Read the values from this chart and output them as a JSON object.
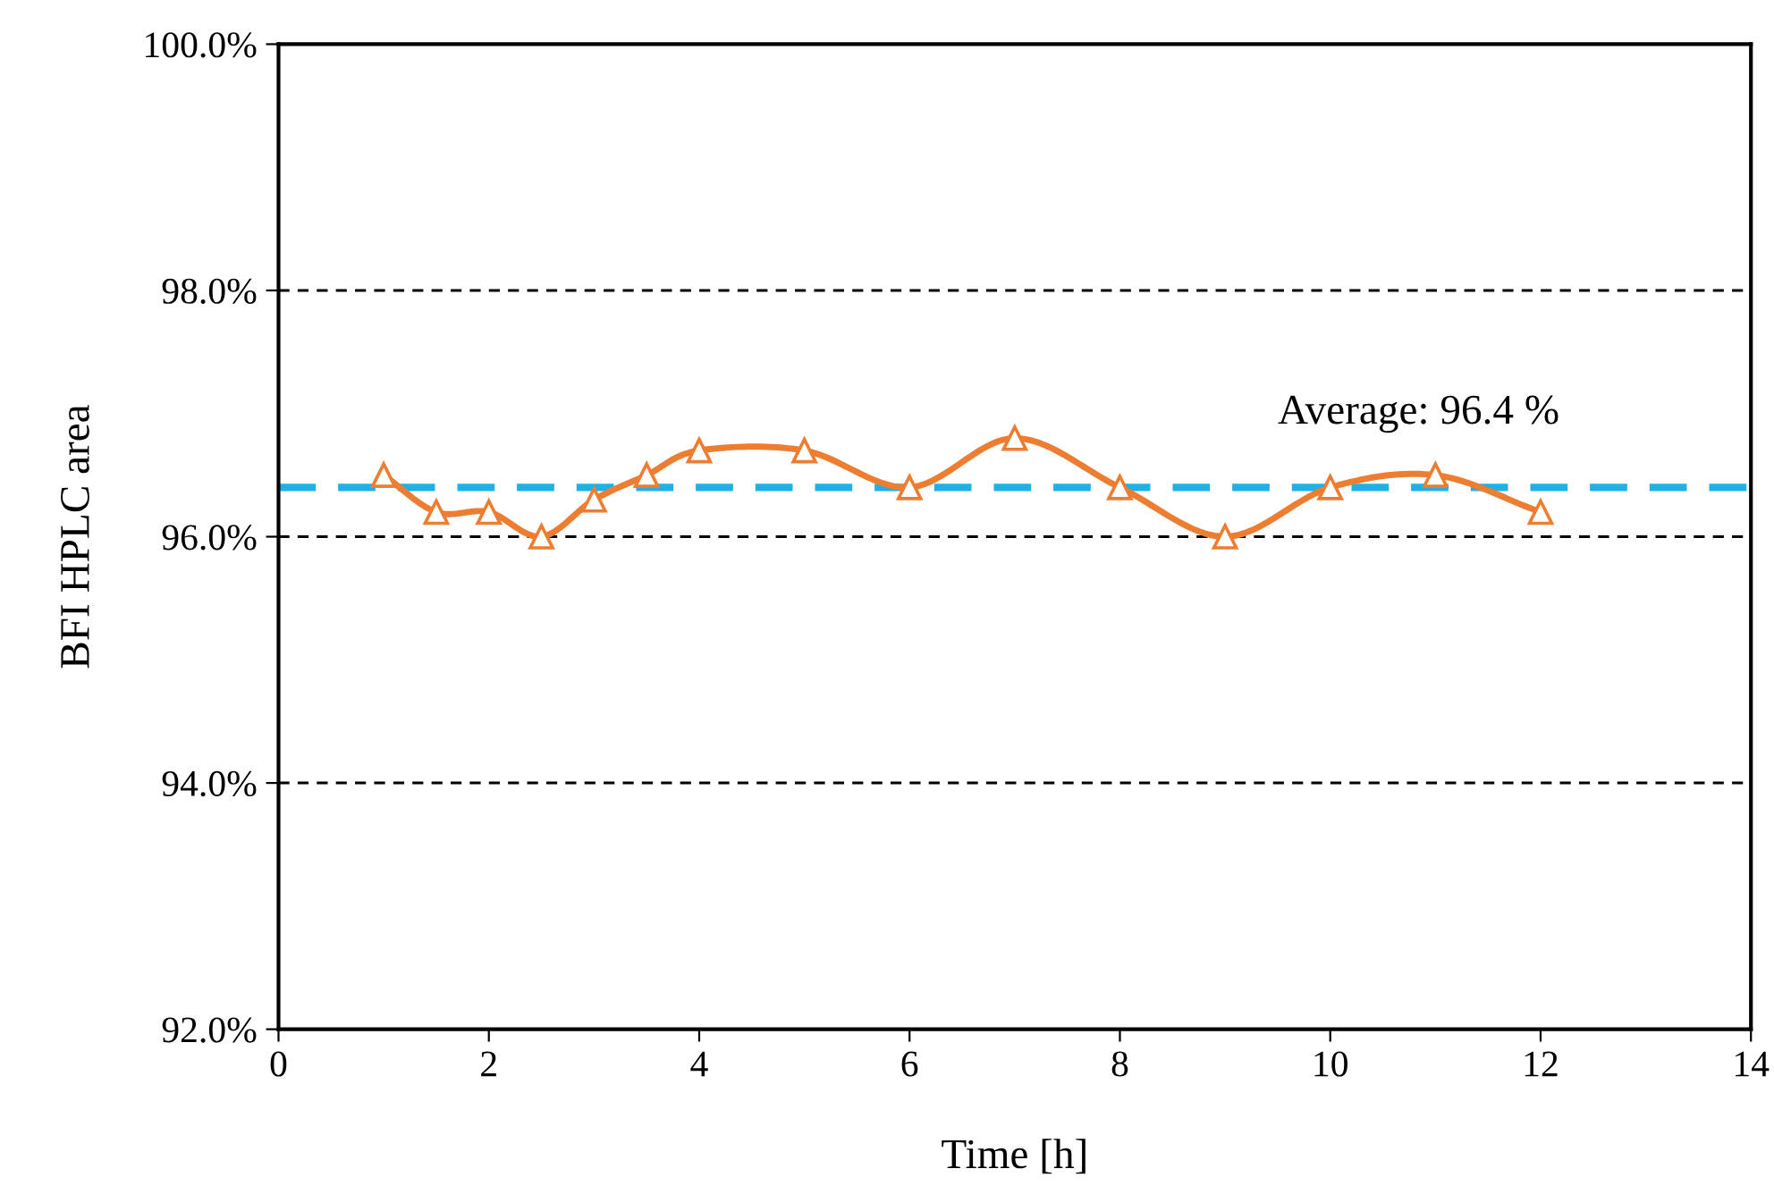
{
  "chart_data": {
    "type": "line",
    "xlabel": "Time [h]",
    "ylabel": "BFI HPLC area",
    "x": [
      1,
      1.5,
      2,
      2.5,
      3,
      3.5,
      4,
      5,
      6,
      7,
      8,
      9,
      10,
      11,
      12
    ],
    "series": [
      {
        "color": "#ed7d31",
        "values": [
          96.5,
          96.2,
          96.2,
          96.0,
          96.3,
          96.5,
          96.7,
          96.7,
          96.4,
          96.8,
          96.4,
          96.0,
          96.4,
          96.5,
          96.2
        ]
      }
    ],
    "xlim": [
      0,
      14
    ],
    "xticks": [
      0,
      2,
      4,
      6,
      8,
      10,
      12,
      14
    ],
    "ylim": [
      92,
      100
    ],
    "yticks": [
      {
        "value": 92,
        "label": "92.0%"
      },
      {
        "value": 94,
        "label": "94.0%"
      },
      {
        "value": 96,
        "label": "96.0%"
      },
      {
        "value": 98,
        "label": "98.0%"
      },
      {
        "value": 100,
        "label": "100.0%"
      }
    ],
    "ref_lines": [
      {
        "axis": "y",
        "value": 96.4,
        "label": "Average: 96.4 %",
        "color": "#1fb0e6",
        "line_style": "dashed"
      }
    ],
    "grid": "y",
    "marker": "triangle",
    "line_style": "solid",
    "legend": false
  }
}
